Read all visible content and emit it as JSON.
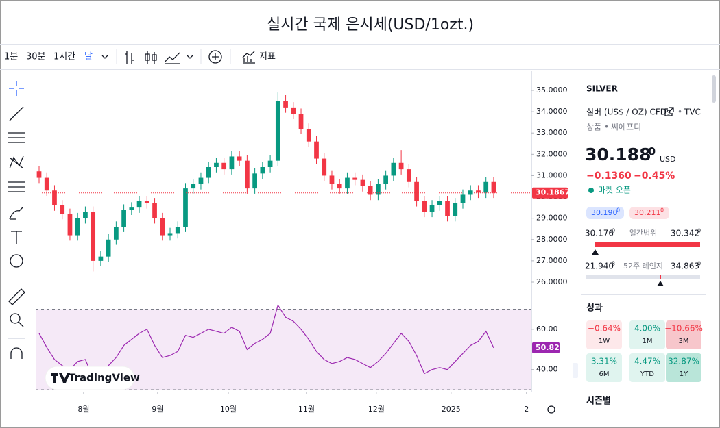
{
  "header": {
    "title": "실시간 국제 은시세(USD/1ozt.)"
  },
  "toolbar": {
    "intervals": [
      "1분",
      "30분",
      "1시간",
      "날"
    ],
    "indicator": "지표"
  },
  "watermark": "TradingView",
  "chart_data": {
    "type": "candlestick",
    "open": [
      31.2,
      30.9,
      30.3,
      29.6,
      29.2,
      28.2,
      29.0,
      29.3,
      27.0,
      27.2,
      28.0,
      28.6,
      29.4,
      29.5,
      29.8,
      29.7,
      29.0,
      28.2,
      28.3,
      28.6,
      30.4,
      30.6,
      30.9,
      31.4,
      31.6,
      31.3,
      31.9,
      31.7,
      30.4,
      31.1,
      31.4,
      31.7,
      34.5,
      34.2,
      33.9,
      33.2,
      32.6,
      31.8,
      31.0,
      30.6,
      30.4,
      30.9,
      30.8,
      30.5,
      30.1,
      30.6,
      31.0,
      31.6,
      31.3,
      30.7,
      29.8,
      29.3,
      29.6,
      29.8,
      29.1,
      29.7,
      30.1,
      30.3,
      30.2,
      30.7
    ],
    "high": [
      31.45,
      31.15,
      30.55,
      29.85,
      29.45,
      29.25,
      29.55,
      29.55,
      27.45,
      28.25,
      28.85,
      29.65,
      29.75,
      30.05,
      30.05,
      29.95,
      29.25,
      28.55,
      28.85,
      30.65,
      30.85,
      31.15,
      31.65,
      31.85,
      31.85,
      32.15,
      32.15,
      31.95,
      31.35,
      31.65,
      31.95,
      34.9,
      34.8,
      34.45,
      34.15,
      33.45,
      32.85,
      32.05,
      31.25,
      30.85,
      31.15,
      31.15,
      31.05,
      30.75,
      30.85,
      31.25,
      31.85,
      32.2,
      31.55,
      30.95,
      30.05,
      29.85,
      30.05,
      30.05,
      29.95,
      30.35,
      30.55,
      30.55,
      30.95,
      30.95
    ],
    "low": [
      30.65,
      30.05,
      29.35,
      28.95,
      27.95,
      27.95,
      28.75,
      26.5,
      26.75,
      26.95,
      27.75,
      28.35,
      29.15,
      29.25,
      29.45,
      28.75,
      27.95,
      27.95,
      28.05,
      28.35,
      30.15,
      30.35,
      30.65,
      31.15,
      31.05,
      31.05,
      31.45,
      30.15,
      30.15,
      30.85,
      31.15,
      31.45,
      33.95,
      33.65,
      32.95,
      32.35,
      31.55,
      30.75,
      30.35,
      30.15,
      30.15,
      30.55,
      30.25,
      29.85,
      29.85,
      30.35,
      30.75,
      31.05,
      30.45,
      29.55,
      29.05,
      29.05,
      29.35,
      28.85,
      28.85,
      29.45,
      29.85,
      29.95,
      29.95,
      29.95
    ],
    "close": [
      30.9,
      30.3,
      29.6,
      29.2,
      28.2,
      29.0,
      29.3,
      27.0,
      27.2,
      28.0,
      28.6,
      29.4,
      29.5,
      29.8,
      29.7,
      29.0,
      28.2,
      28.3,
      28.6,
      30.4,
      30.6,
      30.9,
      31.4,
      31.6,
      31.3,
      31.9,
      31.7,
      30.4,
      31.1,
      31.4,
      31.7,
      34.5,
      34.2,
      33.9,
      33.2,
      32.6,
      31.8,
      31.0,
      30.6,
      30.4,
      30.9,
      30.8,
      30.5,
      30.1,
      30.6,
      31.0,
      31.6,
      31.3,
      30.7,
      29.8,
      29.3,
      29.6,
      29.8,
      29.1,
      29.7,
      30.1,
      30.3,
      30.2,
      30.7,
      30.19
    ],
    "colors": {
      "up": "#089981",
      "down": "#f23645"
    },
    "xlim": [
      -0.445,
      63.9
    ],
    "xticks": [
      {
        "value": 5.78,
        "label": "8월"
      },
      {
        "value": 15.39,
        "label": "9월"
      },
      {
        "value": 24.56,
        "label": "10월"
      },
      {
        "value": 34.7,
        "label": "11월"
      },
      {
        "value": 43.77,
        "label": "12월"
      },
      {
        "value": 53.47,
        "label": "2025"
      },
      {
        "value": 63.26,
        "label": "2"
      }
    ],
    "ylim": [
      25.55,
      35.9
    ],
    "yticks": [
      {
        "value": 26,
        "label": "26.0000"
      },
      {
        "value": 27,
        "label": "27.0000"
      },
      {
        "value": 28,
        "label": "28.0000"
      },
      {
        "value": 29,
        "label": "29.0000"
      },
      {
        "value": 30,
        "label": "30.0000"
      },
      {
        "value": 31,
        "label": "31.0000"
      },
      {
        "value": 32,
        "label": "32.0000"
      },
      {
        "value": 33,
        "label": "33.0000"
      },
      {
        "value": 34,
        "label": "34.0000"
      },
      {
        "value": 35,
        "label": "35.0000"
      }
    ],
    "last_price": 30.1867,
    "rsi": {
      "color": "#9c27b0",
      "values": [
        58,
        51,
        45,
        42,
        40,
        44,
        45,
        36,
        38,
        42,
        46,
        52,
        55,
        58,
        60,
        52,
        46,
        47,
        49,
        57,
        56,
        58,
        60,
        59,
        58,
        61,
        59,
        50,
        53,
        55,
        58,
        72,
        66,
        64,
        60,
        55,
        49,
        45,
        43,
        44,
        46,
        45,
        43,
        41,
        44,
        48,
        53,
        58,
        54,
        47,
        38,
        40,
        41,
        40,
        44,
        48,
        52,
        54,
        59,
        50.82
      ],
      "ylim": [
        29,
        78
      ],
      "yticks": [
        {
          "value": 40,
          "label": "40.00"
        },
        {
          "value": 60,
          "label": "60.00"
        }
      ],
      "band": [
        30,
        70
      ]
    }
  },
  "sidebar": {
    "symbol": "SILVER",
    "description": "실버 (US$ / OZ) CFDs",
    "source": "TVC",
    "category": "상품",
    "subcategory": "씨에프디",
    "price": "30.188",
    "price_sup": "0",
    "currency": "USD",
    "change": "−0.1360",
    "change_pct": "−0.45%",
    "market_status": "마켓 오픈",
    "bid": [
      "30.190",
      "0"
    ],
    "ask": [
      "30.211",
      "0"
    ],
    "day_range": {
      "low": [
        "30.176",
        "0"
      ],
      "label": "일간범위",
      "high": [
        "30.342",
        "0"
      ]
    },
    "week52_range": {
      "low": [
        "21.940",
        "8"
      ],
      "label": "52주 레인지",
      "high": [
        "34.863",
        "0"
      ]
    },
    "performance_title": "성과",
    "performance": [
      [
        "−0.64%",
        "1W"
      ],
      [
        "4.00%",
        "1M"
      ],
      [
        "−10.66%",
        "3M"
      ],
      [
        "3.31%",
        "6M"
      ],
      [
        "4.47%",
        "YTD"
      ],
      [
        "32.87%",
        "1Y"
      ]
    ],
    "seasonal_title": "시즌별"
  }
}
